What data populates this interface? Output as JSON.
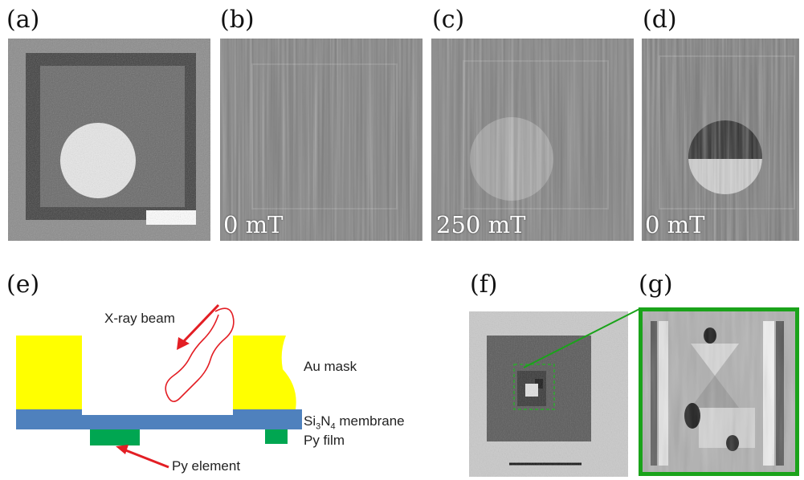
{
  "panel_labels": {
    "a": "(a)",
    "b": "(b)",
    "c": "(c)",
    "d": "(d)",
    "e": "(e)",
    "f": "(f)",
    "g": "(g)"
  },
  "field_labels": {
    "b": "0 mT",
    "c": "250 mT",
    "d": "0 mT"
  },
  "diagram": {
    "xray_beam": "X-ray beam",
    "au_mask": "Au mask",
    "membrane_prefix": "Si",
    "membrane_sub1": "3",
    "membrane_mid": "N",
    "membrane_sub2": "4",
    "membrane_suffix": " membrane",
    "py_film": "Py film",
    "py_element": "Py element"
  },
  "colors": {
    "au_mask": "#ffff00",
    "membrane": "#4f81bd",
    "py": "#00a651",
    "beam": "#e31e24",
    "zoom_frame": "#1aa31a"
  }
}
